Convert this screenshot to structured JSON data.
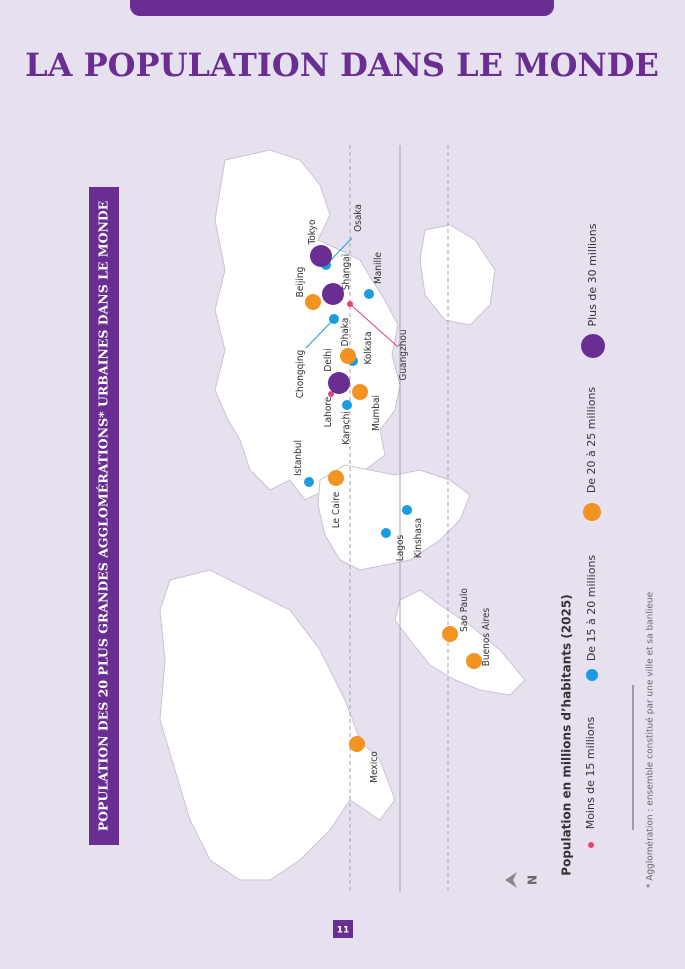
{
  "header": {
    "title": "LA POPULATION DANS LE MONDE"
  },
  "map": {
    "title": "POPULATION DES 20 PLUS GRANDES AGGLOMÉRATIONS* URBAINES DANS LE MONDE",
    "legend_title": "Population en millions d’habitants (2025)",
    "legend": [
      {
        "label": "Moins de 15 millions",
        "color": "#e6436e",
        "cities": [
          "Guangzhou",
          "Lahore"
        ]
      },
      {
        "label": "De 15 à 20 millions",
        "color": "#1b9be0",
        "cities": [
          "Osaka",
          "Manille",
          "Chongqing",
          "Kolkata",
          "Karachi",
          "Istanbul",
          "Lagos",
          "Kinshasa"
        ]
      },
      {
        "label": "De 20 à 25 millions",
        "color": "#f39322",
        "cities": [
          "Beijing",
          "Dhaka",
          "Mumbai",
          "Le Caire",
          "Sao Paulo",
          "Buenos Aires",
          "Mexico"
        ]
      },
      {
        "label": "Plus de 30 millions",
        "color": "#6a2d91",
        "cities": [
          "Tokyo",
          "Shangaï",
          "Delhi"
        ]
      }
    ],
    "north": "N"
  },
  "footnote": "* Agglomération : ensemble constitué par une ville et sa banlieue",
  "page_number": "11"
}
